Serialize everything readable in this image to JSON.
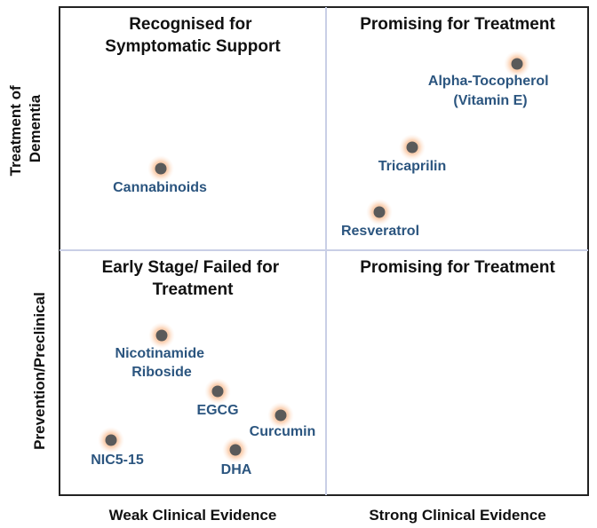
{
  "axes": {
    "x_left": "Weak Clinical Evidence",
    "x_right": "Strong Clinical Evidence",
    "y_top": [
      "Treatment of",
      "Dementia"
    ],
    "y_bottom": "Prevention/Preclinical"
  },
  "quadrants": {
    "top_left": [
      "Recognised for",
      "Symptomatic Support"
    ],
    "top_right": [
      "Promising for Treatment"
    ],
    "bottom_left": [
      "Early Stage/ Failed for",
      "Treatment"
    ],
    "bottom_right": [
      "Promising for Treatment"
    ]
  },
  "compounds": [
    {
      "id": "alpha-tocopherol",
      "lines": [
        "Alpha-Tocopherol",
        "(Vitamin E)"
      ]
    },
    {
      "id": "tricaprilin",
      "lines": [
        "Tricaprilin"
      ]
    },
    {
      "id": "resveratrol",
      "lines": [
        "Resveratrol"
      ]
    },
    {
      "id": "cannabinoids",
      "lines": [
        "Cannabinoids"
      ]
    },
    {
      "id": "nicotinamide-riboside",
      "lines": [
        "Nicotinamide",
        "Riboside"
      ]
    },
    {
      "id": "egcg",
      "lines": [
        "EGCG"
      ]
    },
    {
      "id": "curcumin",
      "lines": [
        "Curcumin"
      ]
    },
    {
      "id": "nic5-15",
      "lines": [
        "NIC5-15"
      ]
    },
    {
      "id": "dha",
      "lines": [
        "DHA"
      ]
    }
  ],
  "colors": {
    "label": "#2b557f",
    "dot": "#5a5a5a",
    "glow": "#f6a46a",
    "frame": "#222222",
    "divider": "#c9cfe6"
  }
}
